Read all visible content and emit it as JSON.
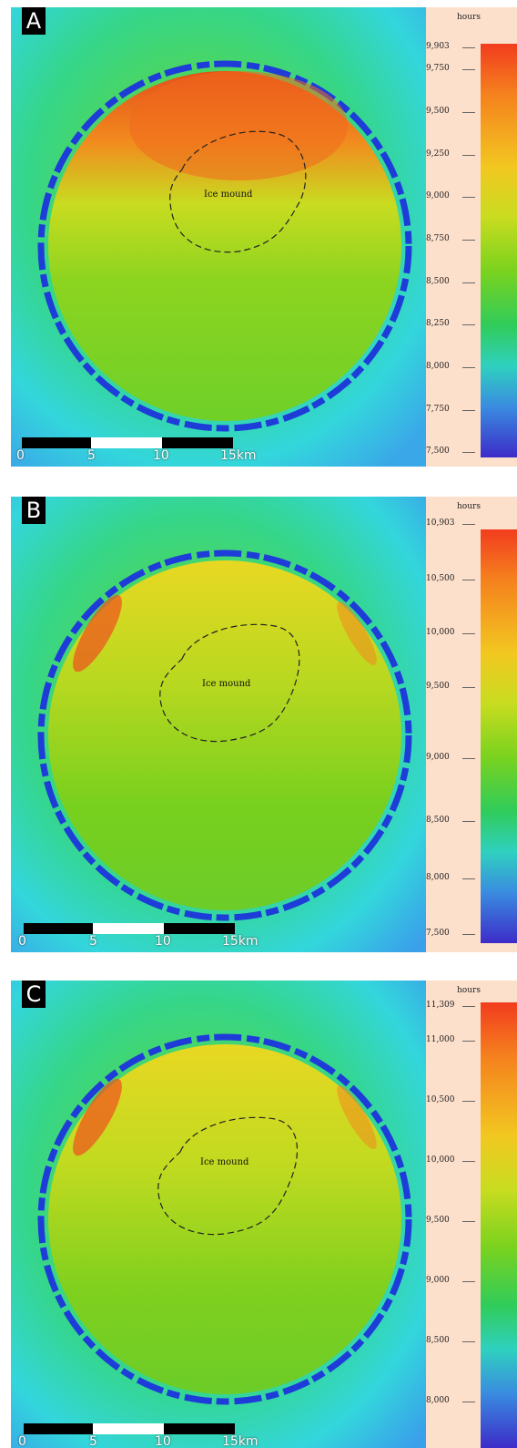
{
  "panels": [
    {
      "letter": "A",
      "mound_label": "Ice mound",
      "legend": {
        "unit": "hours",
        "max_label": "9,903",
        "ticks": [
          "9,750",
          "9,500",
          "9,250",
          "9,000",
          "8,750",
          "8,500",
          "8,250",
          "8,000",
          "7,750",
          "7,500"
        ]
      },
      "scalebar": {
        "labels": [
          "0",
          "5",
          "10",
          "15km"
        ]
      }
    },
    {
      "letter": "B",
      "mound_label": "Ice mound",
      "legend": {
        "unit": "hours",
        "max_label": "10,903",
        "ticks": [
          "10,500",
          "10,000",
          "9,500",
          "9,000",
          "8,500",
          "8,000",
          "7,500"
        ]
      },
      "scalebar": {
        "labels": [
          "0",
          "5",
          "10",
          "15km"
        ]
      }
    },
    {
      "letter": "C",
      "mound_label": "Ice mound",
      "legend": {
        "unit": "hours",
        "max_label": "11,309",
        "ticks": [
          "11,000",
          "10,500",
          "10,000",
          "9,500",
          "9,000",
          "8,500",
          "8,000"
        ]
      },
      "scalebar": {
        "labels": [
          "0",
          "5",
          "10",
          "15km"
        ]
      }
    }
  ],
  "colors": {
    "outer_cyan": "#33d6dc",
    "rim_blue": "#1e3cd8",
    "floor_green": "#6fd420",
    "warm_orange": "#f26a1e",
    "yellow": "#e8e020"
  }
}
